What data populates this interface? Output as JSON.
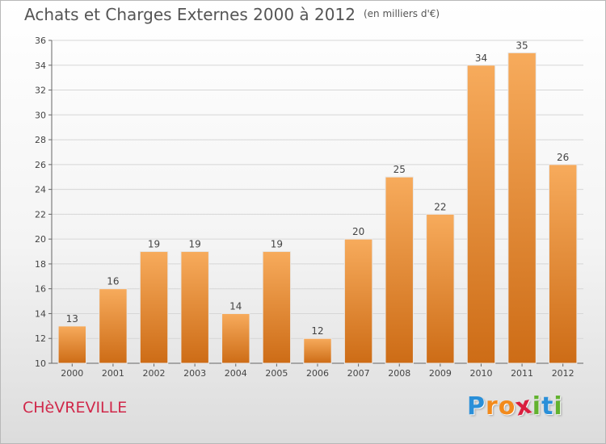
{
  "header": {
    "title": "Achats et Charges Externes 2000 à 2012",
    "unit": "(en milliers d'€)"
  },
  "footer": {
    "city": "CHèVREVILLE",
    "brand": "Proxiti",
    "brand_letters": [
      {
        "ch": "P",
        "color": "#2a8fd8"
      },
      {
        "ch": "r",
        "color": "#f28a1c"
      },
      {
        "ch": "o",
        "color": "#f28a1c"
      },
      {
        "ch": "x",
        "color": "#d91f3f"
      },
      {
        "ch": "i",
        "color": "#62b22f"
      },
      {
        "ch": "t",
        "color": "#2a8fd8"
      },
      {
        "ch": "i",
        "color": "#62b22f"
      }
    ]
  },
  "colors": {
    "bar_top": "#f7ab5c",
    "bar_bottom": "#cd6c16",
    "grid": "#d6d6d6",
    "axis": "#666666",
    "text": "#444444"
  },
  "chart_data": {
    "type": "bar",
    "title": "Achats et Charges Externes 2000 à 2012",
    "subtitle": "(en milliers d'€)",
    "categories": [
      "2000",
      "2001",
      "2002",
      "2003",
      "2004",
      "2005",
      "2006",
      "2007",
      "2008",
      "2009",
      "2010",
      "2011",
      "2012"
    ],
    "values": [
      13,
      16,
      19,
      19,
      14,
      19,
      12,
      20,
      25,
      22,
      34,
      35,
      26
    ],
    "ylim": [
      10,
      36
    ],
    "yticks": [
      10,
      12,
      14,
      16,
      18,
      20,
      22,
      24,
      26,
      28,
      30,
      32,
      34,
      36
    ],
    "grid": true,
    "data_labels": true
  }
}
